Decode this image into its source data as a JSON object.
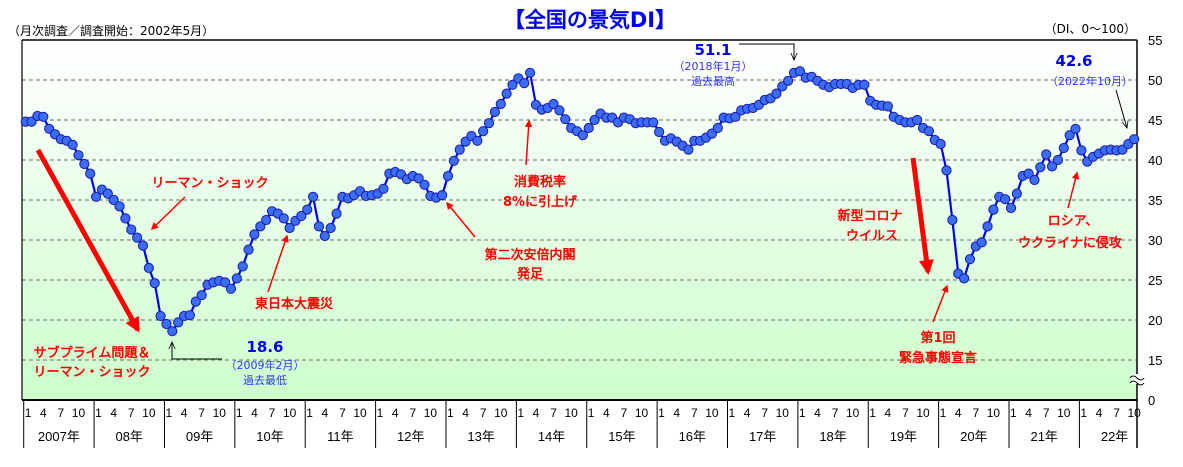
{
  "header": {
    "title": "【全国の景気DI】",
    "subtitle": "（月次調査／調査開始：2002年5月）",
    "unit": "（DI、0～100）"
  },
  "colors": {
    "line": "#0000ff",
    "marker_fill": "#3a6cf4",
    "marker_stroke": "#1a1aa8",
    "annotation": "#ff0000",
    "highlight_value": "#0000ee",
    "background_top": "#ffffff",
    "background_bottom": "#ccffcc"
  },
  "chart_data": {
    "type": "line",
    "title": "【全国の景気DI】",
    "ylabel": "（DI、0～100）",
    "ylim": [
      15,
      55
    ],
    "y_axis_break": "between 0 and 15",
    "y_ticks": [
      "55",
      "50",
      "45",
      "40",
      "35",
      "30",
      "25",
      "20",
      "15",
      "0"
    ],
    "x_month_ticks": [
      "1",
      "4",
      "7",
      "10"
    ],
    "x_year_labels": [
      "2007年",
      "08年",
      "09年",
      "10年",
      "11年",
      "12年",
      "13年",
      "14年",
      "15年",
      "16年",
      "17年",
      "18年",
      "19年",
      "20年",
      "21年",
      "22年"
    ],
    "grid": "horizontal dashed",
    "markers": "circle",
    "monthly_values_by_year": {
      "2007": [
        44.8,
        44.8,
        45.5,
        45.4,
        43.9,
        43.2,
        42.6,
        42.4,
        41.9,
        40.6,
        39.5,
        38.3
      ],
      "2008": [
        35.4,
        36.3,
        35.8,
        35.0,
        34.2,
        32.7,
        31.3,
        30.3,
        29.3,
        26.5,
        24.6,
        20.5
      ],
      "2009": [
        19.5,
        18.6,
        19.7,
        20.5,
        20.6,
        22.3,
        23.1,
        24.4,
        24.7,
        24.9,
        24.7,
        23.9
      ],
      "2010": [
        25.2,
        26.7,
        28.8,
        30.7,
        31.7,
        32.5,
        33.6,
        33.3,
        32.7,
        31.5,
        32.4,
        33.0
      ],
      "2011": [
        33.8,
        35.4,
        31.7,
        30.5,
        31.5,
        33.3,
        35.4,
        35.2,
        35.6,
        36.1,
        35.5,
        35.6
      ],
      "2012": [
        35.8,
        36.4,
        38.3,
        38.5,
        38.2,
        37.6,
        38.0,
        37.7,
        36.9,
        35.5,
        35.3,
        35.6
      ],
      "2013": [
        38.0,
        39.9,
        41.3,
        42.3,
        43.0,
        42.4,
        43.6,
        44.6,
        46.0,
        47.0,
        48.3,
        49.4
      ],
      "2014": [
        50.2,
        49.6,
        50.9,
        46.9,
        46.3,
        46.5,
        47.0,
        46.2,
        45.1,
        44.0,
        43.6,
        43.1
      ],
      "2015": [
        44.0,
        45.0,
        45.8,
        45.3,
        45.3,
        44.7,
        45.3,
        45.1,
        44.6,
        44.7,
        44.7,
        44.7
      ],
      "2016": [
        43.5,
        42.4,
        42.7,
        42.3,
        41.8,
        41.3,
        42.4,
        42.4,
        42.8,
        43.3,
        44.0,
        45.3
      ],
      "2017": [
        45.2,
        45.4,
        46.2,
        46.4,
        46.5,
        46.9,
        47.5,
        47.7,
        48.3,
        49.2,
        49.9,
        50.9
      ],
      "2018": [
        51.1,
        50.3,
        50.4,
        49.9,
        49.4,
        49.1,
        49.5,
        49.5,
        49.5,
        49.0,
        49.4,
        49.4
      ],
      "2019": [
        47.4,
        46.9,
        46.8,
        46.7,
        45.4,
        45.0,
        44.7,
        44.7,
        45.0,
        44.0,
        43.6,
        42.5
      ],
      "2020": [
        42.0,
        38.7,
        32.5,
        25.8,
        25.2,
        27.6,
        29.2,
        29.7,
        31.7,
        33.8,
        35.4,
        35.1
      ],
      "2021": [
        34.0,
        35.8,
        38.0,
        38.3,
        37.5,
        39.1,
        40.7,
        39.2,
        40.0,
        41.5,
        43.1,
        43.9
      ],
      "2022": [
        41.2,
        39.8,
        40.4,
        40.8,
        41.2,
        41.3,
        41.2,
        41.3,
        42.0,
        42.6
      ]
    },
    "highlights": {
      "low": {
        "value": "18.6",
        "date": "（2009年2月）",
        "label": "過去最低"
      },
      "high": {
        "value": "51.1",
        "date": "（2018年1月）",
        "label": "過去最高"
      },
      "latest": {
        "value": "42.6",
        "date": "（2022年10月）"
      }
    },
    "annotations": {
      "lehman": "リーマン・ショック",
      "subprime_1": "サブプライム問題＆",
      "subprime_2": "リーマン・ショック",
      "earthquake": "東日本大震災",
      "abe_1": "第二次安倍内閣",
      "abe_2": "発足",
      "tax_1": "消費税率",
      "tax_2": "8%に引上げ",
      "corona_1": "新型コロナ",
      "corona_2": "ウイルス",
      "emergency_1": "第1回",
      "emergency_2": "緊急事態宣言",
      "russia_1": "ロシア、",
      "russia_2": "ウクライナに侵攻"
    }
  }
}
